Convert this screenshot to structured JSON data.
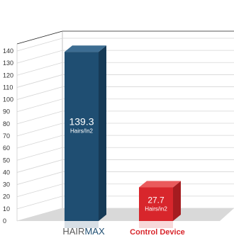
{
  "chart_data": {
    "type": "bar",
    "categories": [
      "HAIRMAX",
      "Control Device"
    ],
    "values": [
      139.3,
      27.7
    ],
    "value_labels": [
      "139.3",
      "27.7"
    ],
    "value_units": [
      "Hairs/In2",
      "Hairs/in2"
    ],
    "ylim": [
      0,
      140
    ],
    "yticks": [
      "0",
      "10",
      "20",
      "30",
      "40",
      "50",
      "60",
      "70",
      "80",
      "90",
      "100",
      "110",
      "120",
      "130",
      "140"
    ],
    "grid": true,
    "title": "",
    "xlabel": "",
    "ylabel": "",
    "category_text": {
      "hairmax_prefix": "HAIR",
      "hairmax_suffix": "MAX",
      "control": "Control Device"
    },
    "colors": {
      "hairmax_front": "#1f4e72",
      "hairmax_side": "#163a56",
      "hairmax_top": "#3d6d92",
      "control_front": "#d8262c",
      "control_side": "#a51c20",
      "control_top": "#ea5a5c",
      "hairmax_prefix_text": "#5a5a5a",
      "hairmax_suffix_text": "#1f4e72",
      "control_text": "#d8262c",
      "gridline": "#d6d6d6",
      "floor": "#d9d9d9"
    }
  }
}
